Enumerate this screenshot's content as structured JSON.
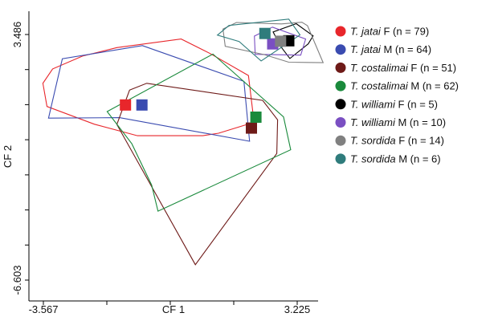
{
  "chart_data": {
    "type": "scatter",
    "title": "",
    "xlabel": "CF 1",
    "ylabel": "CF 2",
    "xlim": [
      -3.567,
      3.225
    ],
    "ylim": [
      -6.603,
      3.486
    ],
    "xticks": [
      {
        "value": -3.567,
        "label": "-3.567"
      },
      {
        "value": 3.225,
        "label": "3.225"
      }
    ],
    "yticks": [
      {
        "value": 3.486,
        "label": "3.486"
      },
      {
        "value": -6.603,
        "label": "-6.603"
      }
    ],
    "legend_position": "right",
    "series": [
      {
        "name": "T. jatai F (n = 79)",
        "species": "T. jatai",
        "sex": "F",
        "n": "(n = 79)",
        "color": "#e8262b",
        "centroid": [
          -1.37,
          0.59
        ],
        "hull": [
          [
            -1.6,
            2.95
          ],
          [
            0.12,
            3.3
          ],
          [
            0.9,
            2.7
          ],
          [
            1.92,
            1.8
          ],
          [
            2.07,
            -0.12
          ],
          [
            1.12,
            -0.57
          ],
          [
            0.7,
            -0.67
          ],
          [
            -1.05,
            -0.67
          ],
          [
            -2.2,
            -0.2
          ],
          [
            -3.47,
            0.53
          ],
          [
            -3.58,
            1.48
          ],
          [
            -3.32,
            2.07
          ],
          [
            -2.52,
            2.6
          ]
        ]
      },
      {
        "name": "T. jatai M (n = 64)",
        "species": "T. jatai",
        "sex": "M",
        "n": "(n = 64)",
        "color": "#3a4bb0",
        "centroid": [
          -0.93,
          0.59
        ],
        "hull": [
          [
            -0.92,
            3.03
          ],
          [
            1.8,
            1.56
          ],
          [
            1.95,
            -0.9
          ],
          [
            -1.53,
            0.07
          ],
          [
            -3.43,
            0.05
          ],
          [
            -3.06,
            2.49
          ]
        ]
      },
      {
        "name": "T. costalimai F (n = 51)",
        "species": "T. costalimai",
        "sex": "F",
        "n": "(n = 51)",
        "color": "#6e1a18",
        "centroid": [
          2.0,
          -0.36
        ],
        "hull": [
          [
            -1.26,
            1.2
          ],
          [
            -0.8,
            1.48
          ],
          [
            2.3,
            0.78
          ],
          [
            2.7,
            -0.02
          ],
          [
            2.68,
            -1.4
          ],
          [
            0.5,
            -5.97
          ],
          [
            -1.6,
            -0.21
          ]
        ]
      },
      {
        "name": "T. costalimai M (n = 62)",
        "species": "T. costalimai",
        "sex": "M",
        "n": "(n = 62)",
        "color": "#1a8a3c",
        "centroid": [
          2.12,
          0.09
        ],
        "hull": [
          [
            -1.86,
            0.32
          ],
          [
            0.97,
            2.68
          ],
          [
            2.86,
            0.1
          ],
          [
            3.05,
            -1.25
          ],
          [
            -0.5,
            -3.77
          ],
          [
            -0.67,
            -2.7
          ],
          [
            -1.2,
            -1.0
          ]
        ]
      },
      {
        "name": "T. williami F (n = 5)",
        "species": "T. williami",
        "sex": "F",
        "n": "(n = 5)",
        "color": "#000000",
        "centroid": [
          3.0,
          3.23
        ],
        "hull": [
          [
            3.2,
            3.93
          ],
          [
            3.65,
            3.43
          ],
          [
            3.52,
            3.1
          ],
          [
            3.03,
            2.5
          ],
          [
            2.78,
            3.0
          ],
          [
            2.58,
            3.59
          ]
        ]
      },
      {
        "name": "T. williami M (n = 10)",
        "species": "T. williami",
        "sex": "M",
        "n": "(n = 10)",
        "color": "#7a4fc2",
        "centroid": [
          2.57,
          3.1
        ],
        "hull": [
          [
            2.56,
            3.79
          ],
          [
            3.45,
            3.3
          ],
          [
            3.32,
            2.64
          ],
          [
            2.1,
            2.67
          ],
          [
            2.08,
            3.42
          ]
        ]
      },
      {
        "name": "T. sordida F (n = 14)",
        "species": "T. sordida",
        "sex": "F",
        "n": "(n = 14)",
        "color": "#808080",
        "centroid": [
          2.78,
          3.21
        ],
        "hull": [
          [
            1.6,
            3.98
          ],
          [
            2.8,
            3.92
          ],
          [
            3.35,
            3.99
          ],
          [
            3.5,
            3.85
          ],
          [
            3.92,
            2.33
          ],
          [
            3.0,
            2.35
          ],
          [
            2.35,
            2.66
          ],
          [
            1.3,
            3.0
          ],
          [
            1.24,
            3.71
          ]
        ]
      },
      {
        "name": "T. sordida M (n = 6)",
        "species": "T. sordida",
        "sex": "M",
        "n": "(n = 6)",
        "color": "#2f7c7c",
        "centroid": [
          2.36,
          3.53
        ],
        "hull": [
          [
            1.4,
            3.86
          ],
          [
            3.0,
            4.12
          ],
          [
            3.3,
            3.47
          ],
          [
            2.26,
            2.4
          ],
          [
            1.67,
            3.2
          ],
          [
            1.09,
            3.46
          ]
        ]
      }
    ]
  }
}
